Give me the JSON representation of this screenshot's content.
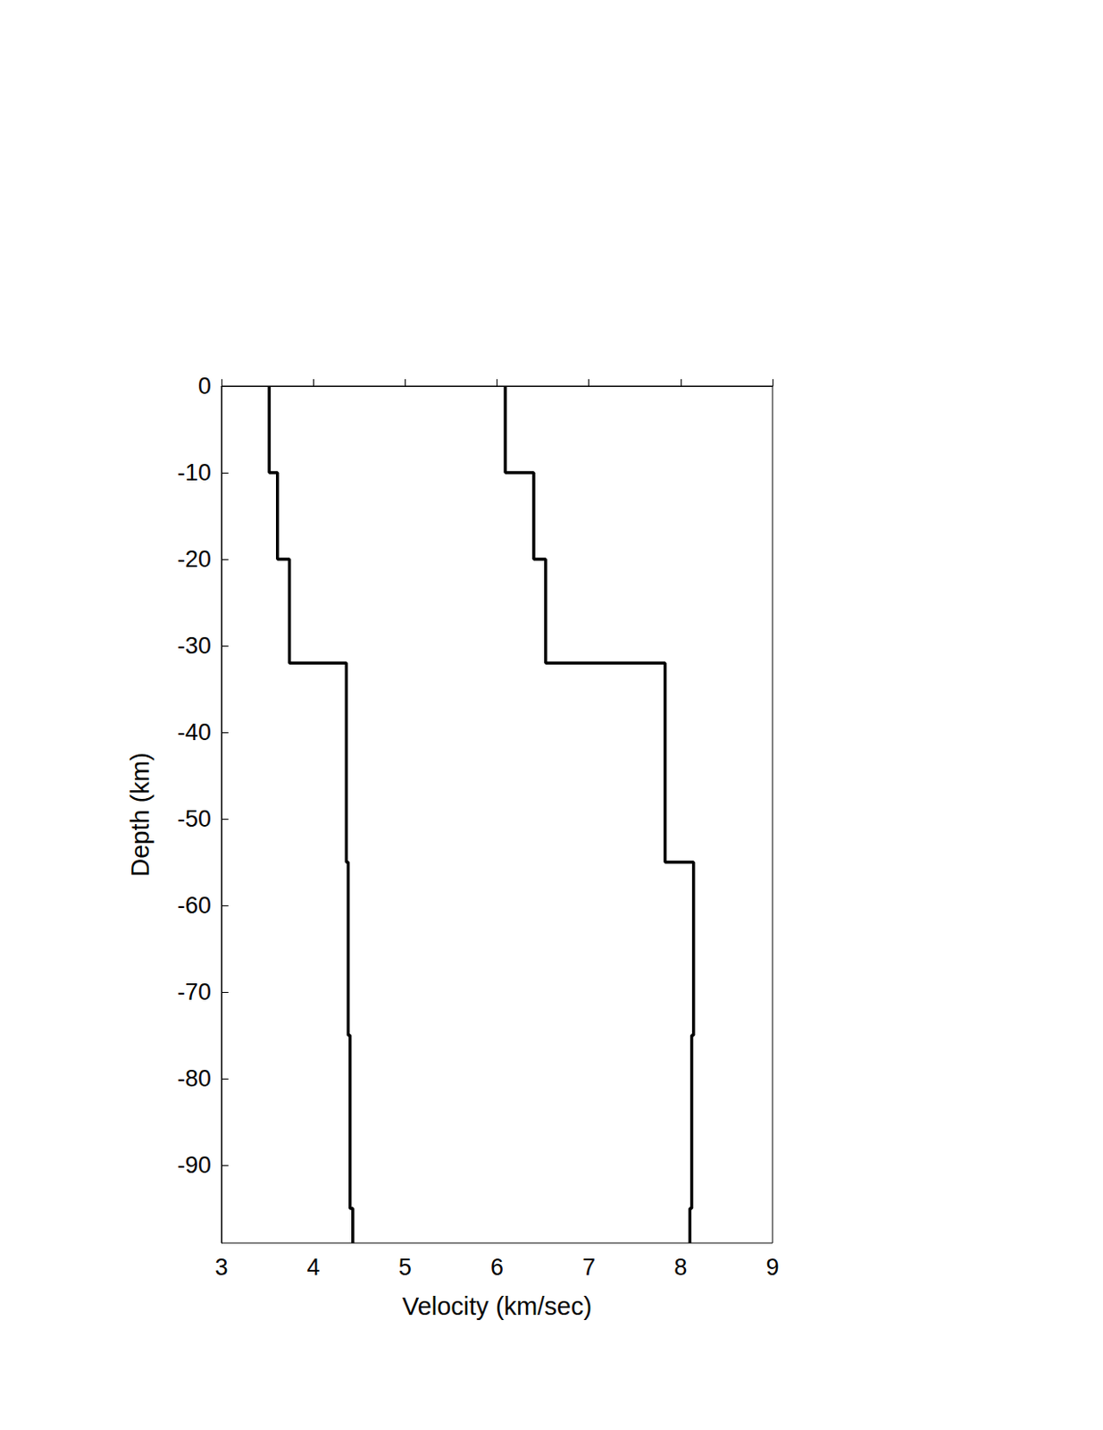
{
  "chart_data": {
    "type": "line",
    "x_label": "Velocity (km/sec)",
    "y_label": "Depth (km)",
    "xlim": [
      3,
      9
    ],
    "xticks": [
      3,
      4,
      5,
      6,
      7,
      8,
      9
    ],
    "ylim": [
      -99,
      0
    ],
    "yticks": [
      -90,
      -80,
      -70,
      -60,
      -50,
      -40,
      -30,
      -20,
      -10,
      0
    ],
    "grid": false,
    "series": [
      {
        "color": "#000000",
        "x": [
          3.52,
          3.52,
          3.61,
          3.61,
          3.74,
          3.74,
          4.36,
          4.36,
          4.38,
          4.38,
          4.4,
          4.4,
          4.43,
          4.43
        ],
        "values": [
          0,
          -10,
          -10,
          -20,
          -20,
          -32,
          -32,
          -55,
          -55,
          -75,
          -75,
          -95,
          -95,
          -99
        ]
      },
      {
        "color": "#000000",
        "x": [
          6.09,
          6.09,
          6.4,
          6.4,
          6.53,
          6.53,
          7.83,
          7.83,
          8.14,
          8.14,
          8.12,
          8.12,
          8.1,
          8.1
        ],
        "values": [
          0,
          -10,
          -10,
          -20,
          -20,
          -32,
          -32,
          -55,
          -55,
          -75,
          -75,
          -95,
          -95,
          -99
        ]
      }
    ]
  }
}
